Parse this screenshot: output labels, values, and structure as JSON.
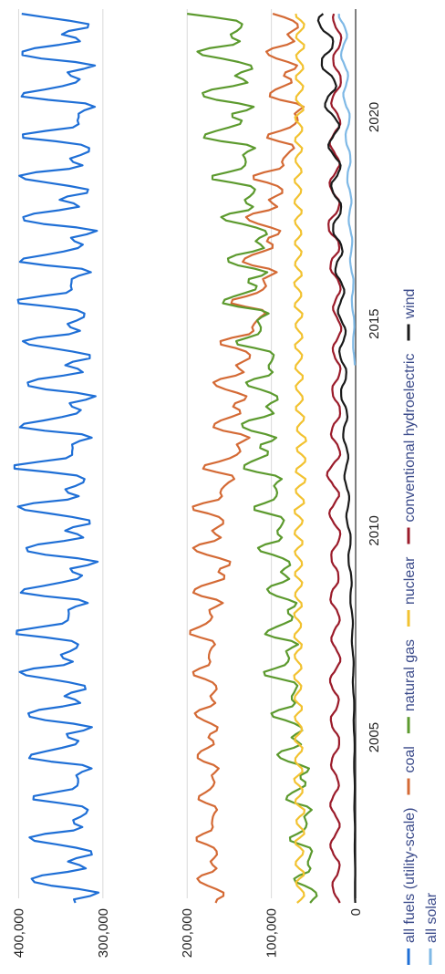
{
  "chart_data": {
    "type": "line",
    "orientation": "rotated-90-ccw",
    "title": "",
    "xlabel": "",
    "ylabel": "",
    "xlim": [
      2001,
      2022.7
    ],
    "ylim": [
      0,
      420000
    ],
    "x_ticks": [
      {
        "value": 2005,
        "label": "2005"
      },
      {
        "value": 2010,
        "label": "2010"
      },
      {
        "value": 2015,
        "label": "2015"
      },
      {
        "value": 2020,
        "label": "2020"
      }
    ],
    "y_ticks": [
      {
        "value": 0,
        "label": "0"
      },
      {
        "value": 100000,
        "label": "100,000"
      },
      {
        "value": 200000,
        "label": "200,000"
      },
      {
        "value": 300000,
        "label": "300,000"
      },
      {
        "value": 400000,
        "label": "400,000"
      }
    ],
    "grid": true,
    "legend_position": "bottom",
    "series": [
      {
        "name": "all fuels (utility-scale)",
        "color": "#1f6fd6",
        "x": [
          2001,
          2002,
          2003,
          2004,
          2005,
          2006,
          2007,
          2008,
          2009,
          2010,
          2011,
          2012,
          2013,
          2014,
          2015,
          2016,
          2017,
          2018,
          2019,
          2020,
          2021,
          2022.5
        ],
        "low": [
          296000,
          298000,
          300000,
          302000,
          304000,
          306000,
          310000,
          308000,
          296000,
          300000,
          300000,
          298000,
          300000,
          300000,
          302000,
          300000,
          296000,
          304000,
          296000,
          292000,
          300000,
          302000
        ],
        "high": [
          385000,
          390000,
          385000,
          380000,
          395000,
          390000,
          405000,
          400000,
          395000,
          395000,
          405000,
          405000,
          392000,
          395000,
          395000,
          405000,
          392000,
          405000,
          395000,
          395000,
          398000,
          405000
        ]
      },
      {
        "name": "coal",
        "color": "#d46a35",
        "x": [
          2001,
          2002,
          2003,
          2004,
          2005,
          2006,
          2007,
          2008,
          2009,
          2010,
          2011,
          2012,
          2013,
          2014,
          2015,
          2016,
          2017,
          2018,
          2019,
          2020,
          2021,
          2022.5
        ],
        "low": [
          150000,
          158000,
          160000,
          160000,
          160000,
          158000,
          162000,
          158000,
          140000,
          150000,
          140000,
          120000,
          125000,
          120000,
          100000,
          90000,
          85000,
          80000,
          68000,
          55000,
          65000,
          60000
        ],
        "high": [
          185000,
          190000,
          188000,
          185000,
          192000,
          190000,
          195000,
          198000,
          190000,
          195000,
          192000,
          170000,
          170000,
          168000,
          155000,
          140000,
          130000,
          130000,
          115000,
          95000,
          110000,
          100000
        ]
      },
      {
        "name": "natural gas",
        "color": "#5c9a2e",
        "x": [
          2001,
          2002,
          2003,
          2004,
          2005,
          2006,
          2007,
          2008,
          2009,
          2010,
          2011,
          2012,
          2013,
          2014,
          2015,
          2016,
          2017,
          2018,
          2019,
          2020,
          2021,
          2022.5
        ],
        "low": [
          40000,
          45000,
          48000,
          50000,
          55000,
          60000,
          62000,
          65000,
          70000,
          75000,
          80000,
          90000,
          85000,
          85000,
          95000,
          100000,
          95000,
          105000,
          110000,
          115000,
          110000,
          120000
        ],
        "high": [
          70000,
          75000,
          80000,
          85000,
          100000,
          100000,
          115000,
          100000,
          110000,
          120000,
          120000,
          145000,
          130000,
          130000,
          150000,
          165000,
          145000,
          170000,
          170000,
          190000,
          180000,
          200000
        ]
      },
      {
        "name": "nuclear",
        "color": "#f2c230",
        "x": [
          2001,
          2002,
          2003,
          2004,
          2005,
          2006,
          2007,
          2008,
          2009,
          2010,
          2011,
          2012,
          2013,
          2014,
          2015,
          2016,
          2017,
          2018,
          2019,
          2020,
          2021,
          2022.5
        ],
        "low": [
          60000,
          62000,
          60000,
          63000,
          63000,
          64000,
          64000,
          64000,
          63000,
          63000,
          60000,
          58000,
          62000,
          63000,
          63000,
          64000,
          64000,
          64000,
          64000,
          62000,
          62000,
          60000
        ],
        "high": [
          70000,
          72000,
          71000,
          73000,
          72000,
          73000,
          73000,
          73000,
          72000,
          73000,
          72000,
          70000,
          71000,
          72000,
          72000,
          73000,
          72000,
          73000,
          72000,
          72000,
          71000,
          71000
        ]
      },
      {
        "name": "conventional hydroelectric",
        "color": "#9b1b2a",
        "x": [
          2001,
          2002,
          2003,
          2004,
          2005,
          2006,
          2007,
          2008,
          2009,
          2010,
          2011,
          2012,
          2013,
          2014,
          2015,
          2016,
          2017,
          2018,
          2019,
          2020,
          2021,
          2022.5
        ],
        "low": [
          18000,
          19000,
          19000,
          20000,
          19000,
          20000,
          18000,
          19000,
          20000,
          18000,
          20000,
          18000,
          18000,
          18000,
          17000,
          18000,
          19000,
          19000,
          19000,
          18000,
          17000,
          17000
        ],
        "high": [
          26000,
          30000,
          30000,
          30000,
          28000,
          32000,
          28000,
          30000,
          30000,
          28000,
          36000,
          30000,
          28000,
          28000,
          26000,
          28000,
          34000,
          31000,
          31000,
          30000,
          27000,
          27000
        ]
      },
      {
        "name": "wind",
        "color": "#1a1a1a",
        "x": [
          2001,
          2002,
          2003,
          2004,
          2005,
          2006,
          2007,
          2008,
          2009,
          2010,
          2011,
          2012,
          2013,
          2014,
          2015,
          2016,
          2017,
          2018,
          2019,
          2020,
          2021,
          2022.5
        ],
        "low": [
          400,
          600,
          800,
          1000,
          1200,
          1800,
          2500,
          3500,
          5000,
          6000,
          8000,
          9000,
          10000,
          11000,
          12000,
          14000,
          16000,
          17000,
          18000,
          20000,
          24000,
          28000
        ],
        "high": [
          700,
          1000,
          1400,
          1700,
          2000,
          3000,
          4000,
          5500,
          8000,
          10000,
          13000,
          14000,
          17000,
          19000,
          20000,
          23000,
          27000,
          28000,
          31000,
          35000,
          40000,
          45000
        ]
      },
      {
        "name": "all solar",
        "color": "#7fb9e6",
        "x": [
          2014,
          2015,
          2016,
          2017,
          2018,
          2019,
          2020,
          2021,
          2022.5
        ],
        "low": [
          1000,
          1500,
          2500,
          4000,
          5000,
          6000,
          7000,
          9000,
          11000
        ],
        "high": [
          2500,
          3500,
          5500,
          7500,
          9000,
          11000,
          13000,
          16000,
          20000
        ]
      }
    ]
  }
}
